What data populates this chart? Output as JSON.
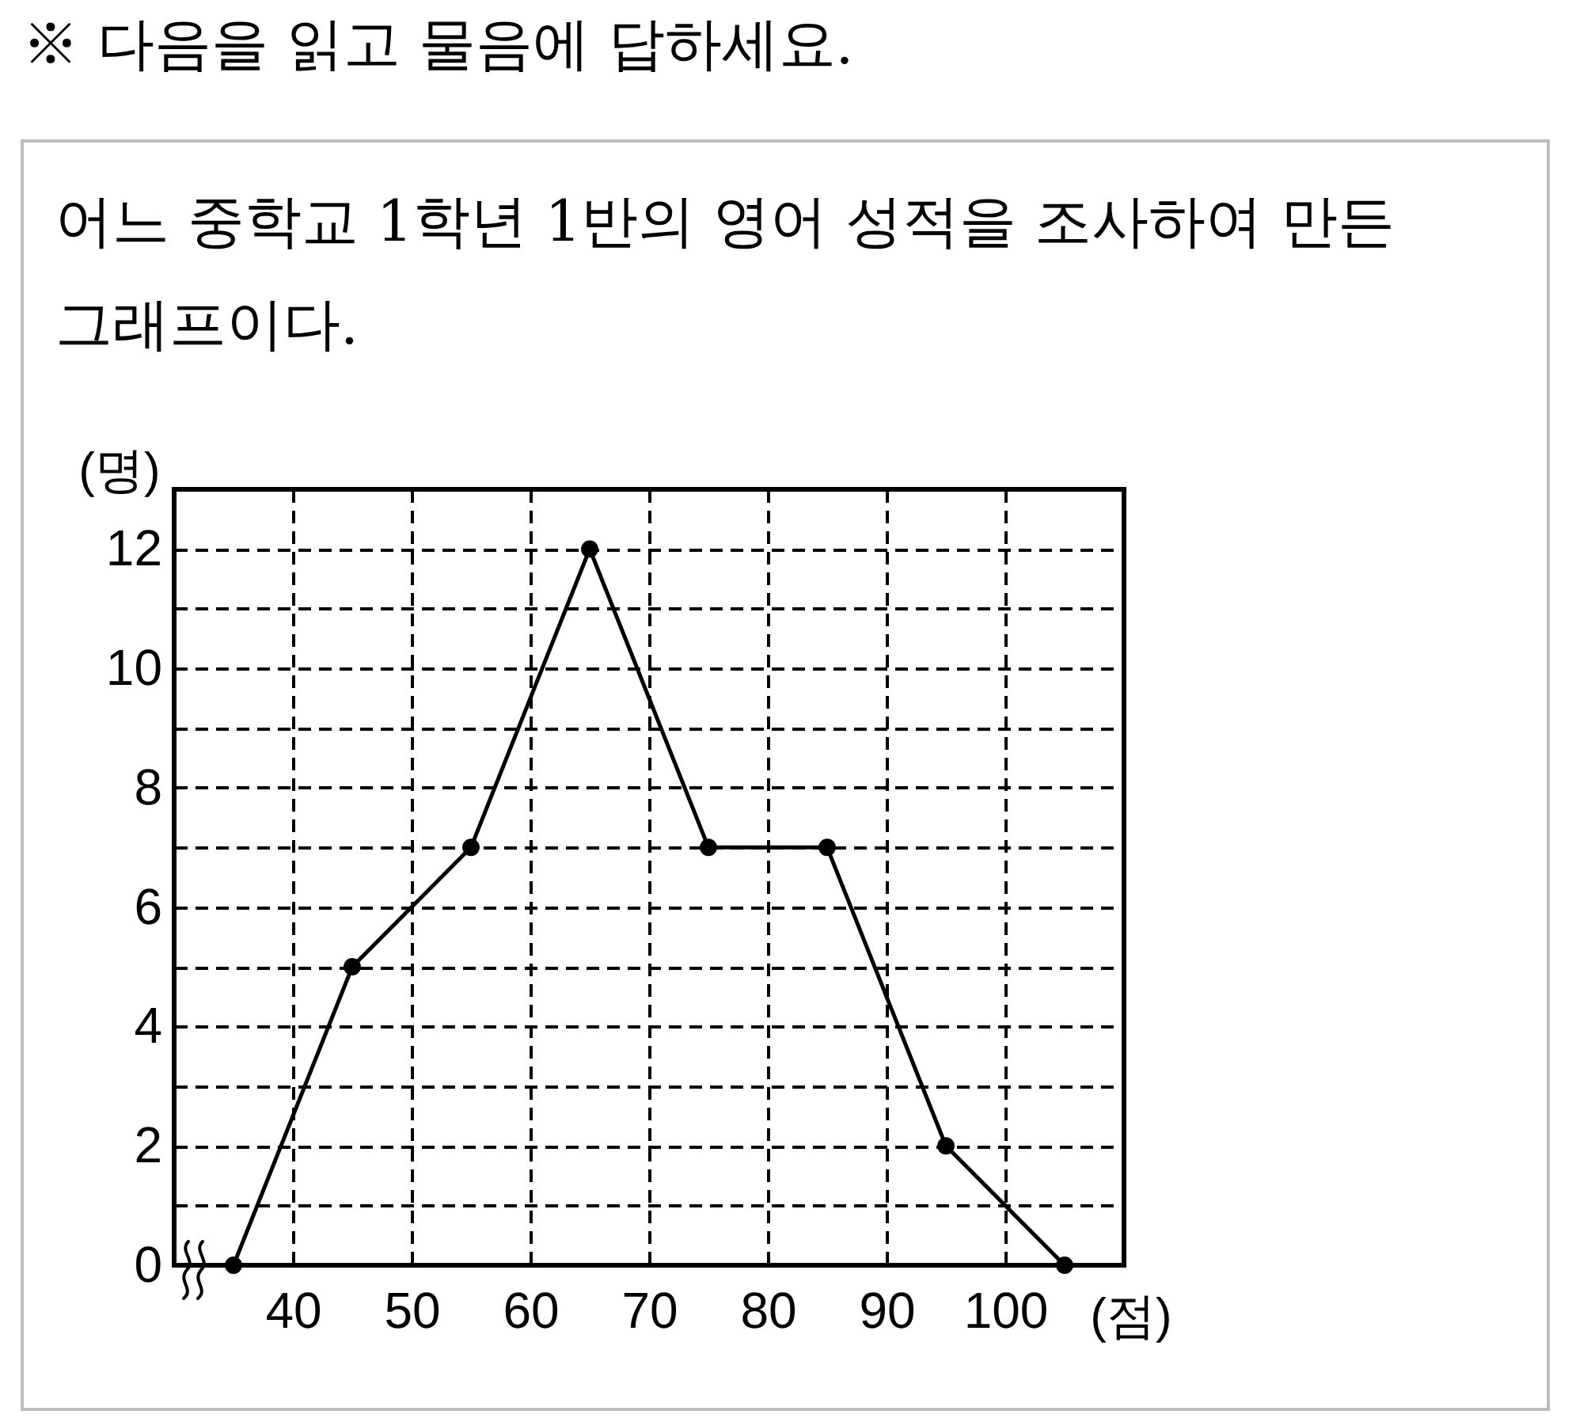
{
  "chart_data": {
    "type": "line",
    "title": "※ 다음을 읽고 물음에 답하세요.",
    "subtitle": "어느 중학교 1학년 1반의 영어 성적을 조사하여 만든 그래프이다.",
    "xlabel": "(점)",
    "ylabel": "(명)",
    "x": [
      35,
      45,
      55,
      65,
      75,
      85,
      95,
      105
    ],
    "series": [
      {
        "color": "#000000",
        "values": [
          0,
          5,
          7,
          12,
          7,
          7,
          2,
          0
        ]
      }
    ],
    "xlim": [
      30,
      110
    ],
    "ylim": [
      0,
      13
    ],
    "xticks": [
      40,
      50,
      60,
      70,
      80,
      90,
      100
    ],
    "yticks": [
      0,
      {
        "value": 1,
        "label": null
      },
      2,
      {
        "value": 3,
        "label": null
      },
      4,
      {
        "value": 5,
        "label": null
      },
      6,
      {
        "value": 7,
        "label": null
      },
      8,
      {
        "value": 9,
        "label": null
      },
      10,
      {
        "value": 11,
        "label": null
      },
      12
    ],
    "grid": true,
    "marker": "circle",
    "line_style": "solid"
  }
}
